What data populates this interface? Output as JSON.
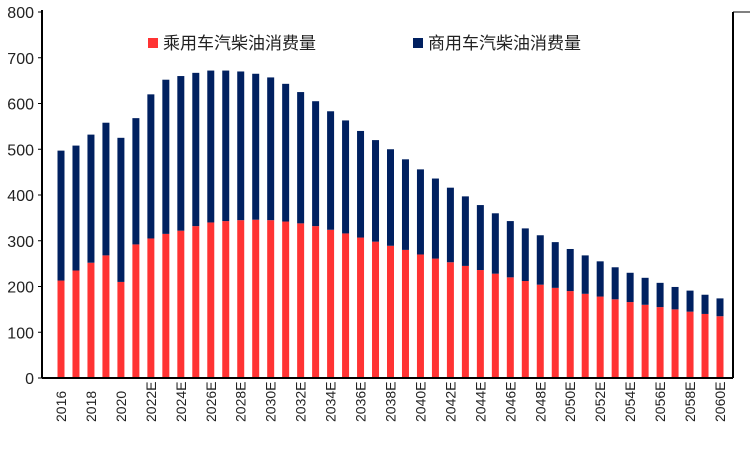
{
  "chart_data": {
    "type": "bar",
    "stacked": true,
    "title": "",
    "xlabel": "",
    "ylabel": "",
    "ylim": [
      0,
      800
    ],
    "yticks": [
      0,
      100,
      200,
      300,
      400,
      500,
      600,
      700,
      800
    ],
    "grid": false,
    "legend_position": "top",
    "categories": [
      "2016",
      "2017",
      "2018",
      "2019",
      "2020",
      "2021",
      "2022E",
      "2023E",
      "2024E",
      "2025E",
      "2026E",
      "2027E",
      "2028E",
      "2029E",
      "2030E",
      "2031E",
      "2032E",
      "2033E",
      "2034E",
      "2035E",
      "2036E",
      "2037E",
      "2038E",
      "2039E",
      "2040E",
      "2041E",
      "2042E",
      "2043E",
      "2044E",
      "2045E",
      "2046E",
      "2047E",
      "2048E",
      "2049E",
      "2050E",
      "2051E",
      "2052E",
      "2053E",
      "2054E",
      "2055E",
      "2056E",
      "2057E",
      "2058E",
      "2059E",
      "2060E"
    ],
    "tick_labels": [
      "2016",
      "2018",
      "2020",
      "2022E",
      "2024E",
      "2026E",
      "2028E",
      "2030E",
      "2032E",
      "2034E",
      "2036E",
      "2038E",
      "2040E",
      "2042E",
      "2044E",
      "2046E",
      "2048E",
      "2050E",
      "2052E",
      "2054E",
      "2056E",
      "2058E",
      "2060E"
    ],
    "series": [
      {
        "name": "乘用车汽柴油消费量",
        "color": "#FF3333",
        "values": [
          213,
          235,
          252,
          268,
          210,
          292,
          305,
          315,
          322,
          332,
          340,
          343,
          345,
          346,
          345,
          342,
          338,
          332,
          324,
          316,
          307,
          298,
          289,
          280,
          270,
          261,
          253,
          245,
          236,
          228,
          220,
          212,
          204,
          197,
          190,
          184,
          178,
          172,
          166,
          160,
          155,
          150,
          145,
          140,
          135
        ]
      },
      {
        "name": "商用车汽柴油消费量",
        "color": "#002060",
        "values": [
          284,
          273,
          280,
          290,
          315,
          276,
          315,
          337,
          338,
          335,
          332,
          329,
          325,
          319,
          312,
          301,
          287,
          273,
          259,
          247,
          233,
          222,
          211,
          198,
          186,
          175,
          163,
          152,
          142,
          132,
          123,
          115,
          108,
          100,
          92,
          84,
          77,
          70,
          64,
          59,
          53,
          49,
          46,
          42,
          39
        ]
      }
    ]
  }
}
